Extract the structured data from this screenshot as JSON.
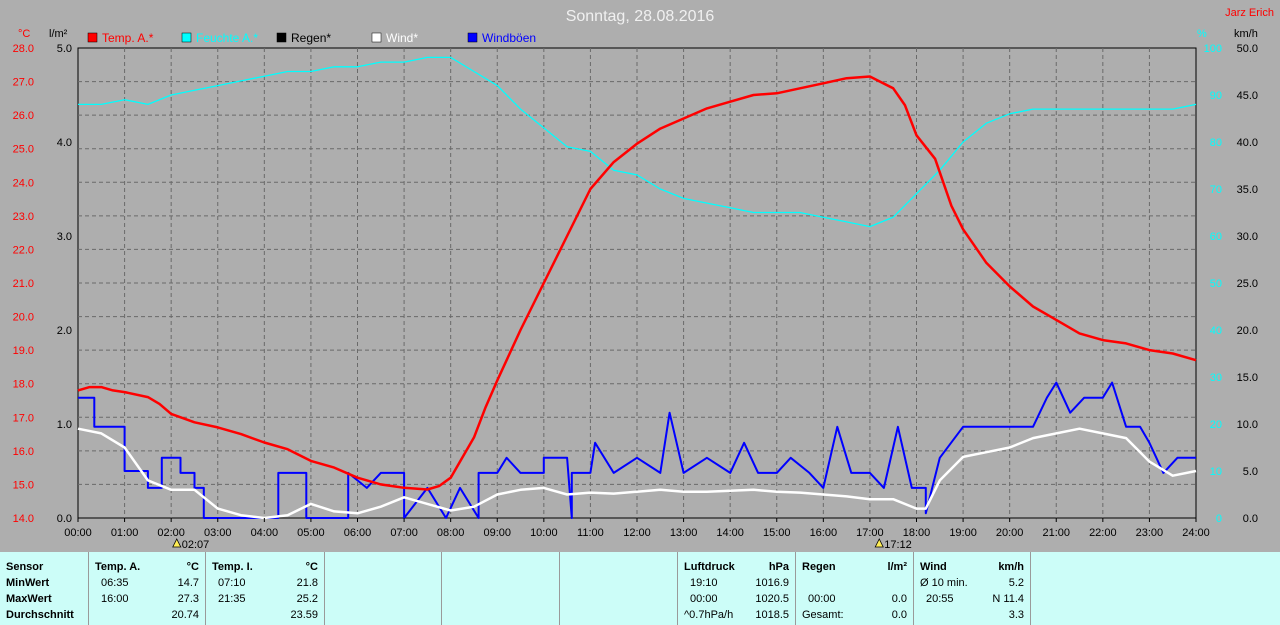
{
  "title": "Sonntag, 28.08.2016",
  "corner_label": "Jarz Erich",
  "colors": {
    "temp": "#ff0000",
    "feuchte": "#00ffff",
    "regen": "#000000",
    "wind": "#ffffff",
    "boeen": "#0000ff"
  },
  "axes": {
    "temp": {
      "unit": "°C",
      "ticks": [
        "28.0",
        "27.0",
        "26.0",
        "25.0",
        "24.0",
        "23.0",
        "22.0",
        "21.0",
        "20.0",
        "19.0",
        "18.0",
        "17.0",
        "16.0",
        "15.0",
        "14.0"
      ],
      "ylim": [
        14,
        28
      ]
    },
    "rain": {
      "unit": "l/m²",
      "ticks": [
        "5.0",
        "4.0",
        "3.0",
        "2.0",
        "1.0",
        "0.0"
      ],
      "ylim": [
        0,
        5
      ]
    },
    "hum": {
      "unit": "%",
      "ticks": [
        "100",
        "90",
        "80",
        "70",
        "60",
        "50",
        "40",
        "30",
        "20",
        "10",
        "0"
      ],
      "ylim": [
        0,
        100
      ]
    },
    "wind": {
      "unit": "km/h",
      "ticks": [
        "50.0",
        "45.0",
        "40.0",
        "35.0",
        "30.0",
        "25.0",
        "20.0",
        "15.0",
        "10.0",
        "5.0",
        "0.0"
      ],
      "ylim": [
        0,
        50
      ]
    },
    "x_ticks": [
      "00:00",
      "01:00",
      "02:00",
      "03:00",
      "04:00",
      "05:00",
      "06:00",
      "07:00",
      "08:00",
      "09:00",
      "10:00",
      "11:00",
      "12:00",
      "13:00",
      "14:00",
      "15:00",
      "16:00",
      "17:00",
      "18:00",
      "19:00",
      "20:00",
      "21:00",
      "22:00",
      "23:00",
      "24:00"
    ]
  },
  "sun_marks": [
    {
      "label": "02:07",
      "x": 2.12
    },
    {
      "label": "17:12",
      "x": 17.2
    }
  ],
  "legend": [
    {
      "key": "temp",
      "label": "Temp. A.*"
    },
    {
      "key": "feuchte",
      "label": "Feuchte A.*"
    },
    {
      "key": "regen",
      "label": "Regen*"
    },
    {
      "key": "wind",
      "label": "Wind*"
    },
    {
      "key": "boeen",
      "label": "Windböen"
    }
  ],
  "chart_data": {
    "type": "line",
    "title": "Sonntag, 28.08.2016",
    "xlim": [
      0,
      24
    ],
    "series": [
      {
        "name": "Temp. A.*",
        "axis": "temp",
        "points": [
          [
            0,
            17.8
          ],
          [
            0.25,
            17.9
          ],
          [
            0.5,
            17.9
          ],
          [
            0.75,
            17.8
          ],
          [
            1,
            17.75
          ],
          [
            1.5,
            17.6
          ],
          [
            1.75,
            17.4
          ],
          [
            2,
            17.1
          ],
          [
            2.5,
            16.85
          ],
          [
            3,
            16.7
          ],
          [
            3.5,
            16.5
          ],
          [
            4,
            16.25
          ],
          [
            4.5,
            16.05
          ],
          [
            5,
            15.7
          ],
          [
            5.5,
            15.5
          ],
          [
            6,
            15.2
          ],
          [
            6.5,
            15.0
          ],
          [
            7,
            14.9
          ],
          [
            7.5,
            14.85
          ],
          [
            7.75,
            14.95
          ],
          [
            8,
            15.2
          ],
          [
            8.25,
            15.8
          ],
          [
            8.5,
            16.4
          ],
          [
            8.75,
            17.3
          ],
          [
            9,
            18.1
          ],
          [
            9.5,
            19.6
          ],
          [
            10,
            21.0
          ],
          [
            10.5,
            22.4
          ],
          [
            11,
            23.8
          ],
          [
            11.5,
            24.6
          ],
          [
            12,
            25.15
          ],
          [
            12.5,
            25.6
          ],
          [
            13,
            25.9
          ],
          [
            13.5,
            26.2
          ],
          [
            14,
            26.4
          ],
          [
            14.5,
            26.6
          ],
          [
            15,
            26.65
          ],
          [
            15.5,
            26.8
          ],
          [
            16,
            26.95
          ],
          [
            16.5,
            27.1
          ],
          [
            17,
            27.15
          ],
          [
            17.5,
            26.8
          ],
          [
            17.75,
            26.3
          ],
          [
            18,
            25.4
          ],
          [
            18.4,
            24.7
          ],
          [
            18.75,
            23.3
          ],
          [
            19,
            22.6
          ],
          [
            19.5,
            21.6
          ],
          [
            20,
            20.9
          ],
          [
            20.5,
            20.3
          ],
          [
            21,
            19.9
          ],
          [
            21.5,
            19.5
          ],
          [
            22,
            19.3
          ],
          [
            22.5,
            19.2
          ],
          [
            23,
            19.0
          ],
          [
            23.5,
            18.9
          ],
          [
            24,
            18.7
          ]
        ]
      },
      {
        "name": "Feuchte A.*",
        "axis": "hum",
        "points": [
          [
            0,
            88
          ],
          [
            0.5,
            88
          ],
          [
            1,
            89
          ],
          [
            1.5,
            88
          ],
          [
            2,
            90
          ],
          [
            2.5,
            91
          ],
          [
            3,
            92
          ],
          [
            3.5,
            93
          ],
          [
            4,
            94
          ],
          [
            4.5,
            95
          ],
          [
            5,
            95
          ],
          [
            5.5,
            96
          ],
          [
            6,
            96
          ],
          [
            6.5,
            97
          ],
          [
            7,
            97
          ],
          [
            7.5,
            98
          ],
          [
            8,
            98
          ],
          [
            8.5,
            95
          ],
          [
            9,
            92
          ],
          [
            9.5,
            87
          ],
          [
            10,
            83
          ],
          [
            10.5,
            79
          ],
          [
            11,
            78
          ],
          [
            11.5,
            74
          ],
          [
            12,
            73
          ],
          [
            12.5,
            70
          ],
          [
            13,
            68
          ],
          [
            13.5,
            67
          ],
          [
            14,
            66
          ],
          [
            14.5,
            65
          ],
          [
            15,
            65
          ],
          [
            15.5,
            65
          ],
          [
            16,
            64
          ],
          [
            16.5,
            63
          ],
          [
            17,
            62
          ],
          [
            17.5,
            64
          ],
          [
            18,
            69
          ],
          [
            18.5,
            74
          ],
          [
            19,
            80
          ],
          [
            19.5,
            84
          ],
          [
            20,
            86
          ],
          [
            20.5,
            87
          ],
          [
            21,
            87
          ],
          [
            21.5,
            87
          ],
          [
            22,
            87
          ],
          [
            22.5,
            87
          ],
          [
            23,
            87
          ],
          [
            23.5,
            87
          ],
          [
            24,
            88
          ]
        ]
      },
      {
        "name": "Wind*",
        "axis": "wind",
        "points": [
          [
            0,
            9.5
          ],
          [
            0.5,
            9.0
          ],
          [
            1,
            7.5
          ],
          [
            1.5,
            4.0
          ],
          [
            2,
            3.0
          ],
          [
            2.5,
            3.0
          ],
          [
            3,
            1.0
          ],
          [
            3.5,
            0.3
          ],
          [
            4,
            0
          ],
          [
            4.5,
            0.3
          ],
          [
            5,
            1.5
          ],
          [
            5.5,
            0.7
          ],
          [
            6,
            0.5
          ],
          [
            6.5,
            1.2
          ],
          [
            7,
            2.2
          ],
          [
            7.5,
            1.5
          ],
          [
            8,
            0.8
          ],
          [
            8.5,
            1.2
          ],
          [
            9,
            2.5
          ],
          [
            9.5,
            3.0
          ],
          [
            10,
            3.2
          ],
          [
            10.5,
            2.5
          ],
          [
            11,
            2.7
          ],
          [
            11.5,
            2.6
          ],
          [
            12,
            2.8
          ],
          [
            12.5,
            3.0
          ],
          [
            13,
            2.8
          ],
          [
            13.5,
            2.8
          ],
          [
            14,
            2.9
          ],
          [
            14.5,
            3.0
          ],
          [
            15,
            2.8
          ],
          [
            15.5,
            2.7
          ],
          [
            16,
            2.5
          ],
          [
            16.5,
            2.3
          ],
          [
            17,
            2.0
          ],
          [
            17.5,
            2.0
          ],
          [
            18,
            1.0
          ],
          [
            18.2,
            1.0
          ],
          [
            18.5,
            4.0
          ],
          [
            19,
            6.5
          ],
          [
            19.5,
            7.0
          ],
          [
            20,
            7.5
          ],
          [
            20.5,
            8.5
          ],
          [
            21,
            9.0
          ],
          [
            21.5,
            9.5
          ],
          [
            22,
            9.0
          ],
          [
            22.5,
            8.5
          ],
          [
            23,
            6.0
          ],
          [
            23.5,
            4.5
          ],
          [
            24,
            5.0
          ]
        ]
      },
      {
        "name": "Windböen",
        "axis": "wind",
        "points": [
          [
            0,
            12.8
          ],
          [
            0.35,
            12.8
          ],
          [
            0.35,
            9.7
          ],
          [
            1,
            9.7
          ],
          [
            1,
            5.0
          ],
          [
            1.5,
            5.0
          ],
          [
            1.5,
            3.2
          ],
          [
            1.8,
            3.2
          ],
          [
            1.8,
            6.4
          ],
          [
            2.2,
            6.4
          ],
          [
            2.2,
            4.8
          ],
          [
            2.5,
            4.8
          ],
          [
            2.5,
            3.2
          ],
          [
            2.7,
            3.2
          ],
          [
            2.7,
            0
          ],
          [
            4.3,
            0
          ],
          [
            4.3,
            4.8
          ],
          [
            4.9,
            4.8
          ],
          [
            4.9,
            0
          ],
          [
            5.8,
            0
          ],
          [
            5.8,
            4.8
          ],
          [
            6.2,
            3.2
          ],
          [
            6.5,
            4.8
          ],
          [
            7,
            4.8
          ],
          [
            7,
            0
          ],
          [
            7.5,
            3.2
          ],
          [
            7.9,
            0
          ],
          [
            8.2,
            3.2
          ],
          [
            8.6,
            0
          ],
          [
            8.6,
            4.8
          ],
          [
            9,
            4.8
          ],
          [
            9.2,
            6.4
          ],
          [
            9.5,
            4.8
          ],
          [
            10,
            4.8
          ],
          [
            10,
            6.4
          ],
          [
            10.5,
            6.4
          ],
          [
            10.6,
            0
          ],
          [
            10.6,
            4.8
          ],
          [
            11,
            4.8
          ],
          [
            11.1,
            8.0
          ],
          [
            11.5,
            4.8
          ],
          [
            12,
            6.4
          ],
          [
            12.5,
            4.8
          ],
          [
            12.7,
            11.2
          ],
          [
            13,
            4.8
          ],
          [
            13.5,
            6.4
          ],
          [
            14,
            4.8
          ],
          [
            14.3,
            8.0
          ],
          [
            14.6,
            4.8
          ],
          [
            15,
            4.8
          ],
          [
            15.3,
            6.4
          ],
          [
            15.7,
            4.8
          ],
          [
            16,
            3.2
          ],
          [
            16.3,
            9.7
          ],
          [
            16.6,
            4.8
          ],
          [
            17,
            4.8
          ],
          [
            17.3,
            3.2
          ],
          [
            17.6,
            9.7
          ],
          [
            17.9,
            3.2
          ],
          [
            18.2,
            3.2
          ],
          [
            18.2,
            0.5
          ],
          [
            18.5,
            6.4
          ],
          [
            19,
            9.7
          ],
          [
            19.5,
            9.7
          ],
          [
            20,
            9.7
          ],
          [
            20.5,
            9.7
          ],
          [
            20.8,
            12.8
          ],
          [
            21,
            14.4
          ],
          [
            21.3,
            11.2
          ],
          [
            21.6,
            12.8
          ],
          [
            22,
            12.8
          ],
          [
            22.2,
            14.4
          ],
          [
            22.5,
            9.7
          ],
          [
            22.8,
            9.7
          ],
          [
            23,
            8.0
          ],
          [
            23.3,
            4.8
          ],
          [
            23.6,
            6.4
          ],
          [
            23.8,
            6.4
          ],
          [
            24,
            6.4
          ]
        ]
      }
    ]
  },
  "stats": {
    "sensor": {
      "header": "Sensor",
      "min": "MinWert",
      "max": "MaxWert",
      "avg": "Durchschnitt"
    },
    "temp_a": {
      "header": "Temp. A.",
      "unit": "°C",
      "min_time": "06:35",
      "min_val": "14.7",
      "max_time": "16:00",
      "max_val": "27.3",
      "avg": "20.74"
    },
    "temp_i": {
      "header": "Temp. I.",
      "unit": "°C",
      "min_time": "07:10",
      "min_val": "21.8",
      "max_time": "21:35",
      "max_val": "25.2",
      "avg": "23.59"
    },
    "luft": {
      "header": "Luftdruck",
      "unit": "hPa",
      "min_time": "19:10",
      "min_val": "1016.9",
      "max_time": "00:00",
      "max_val": "1020.5",
      "trend_label": "^0.7hPa/h",
      "trend_val": "1018.5"
    },
    "regen": {
      "header": "Regen",
      "unit": "l/m²",
      "row1_time": "00:00",
      "row1_val": "0.0",
      "row2_label": "Gesamt:",
      "row2_val": "0.0"
    },
    "wind": {
      "header": "Wind",
      "unit": "km/h",
      "row1_label": "Ø 10 min.",
      "row1_val": "5.2",
      "row2_time": "20:55",
      "row2_val": "N 11.4",
      "row3_val": "3.3"
    }
  }
}
